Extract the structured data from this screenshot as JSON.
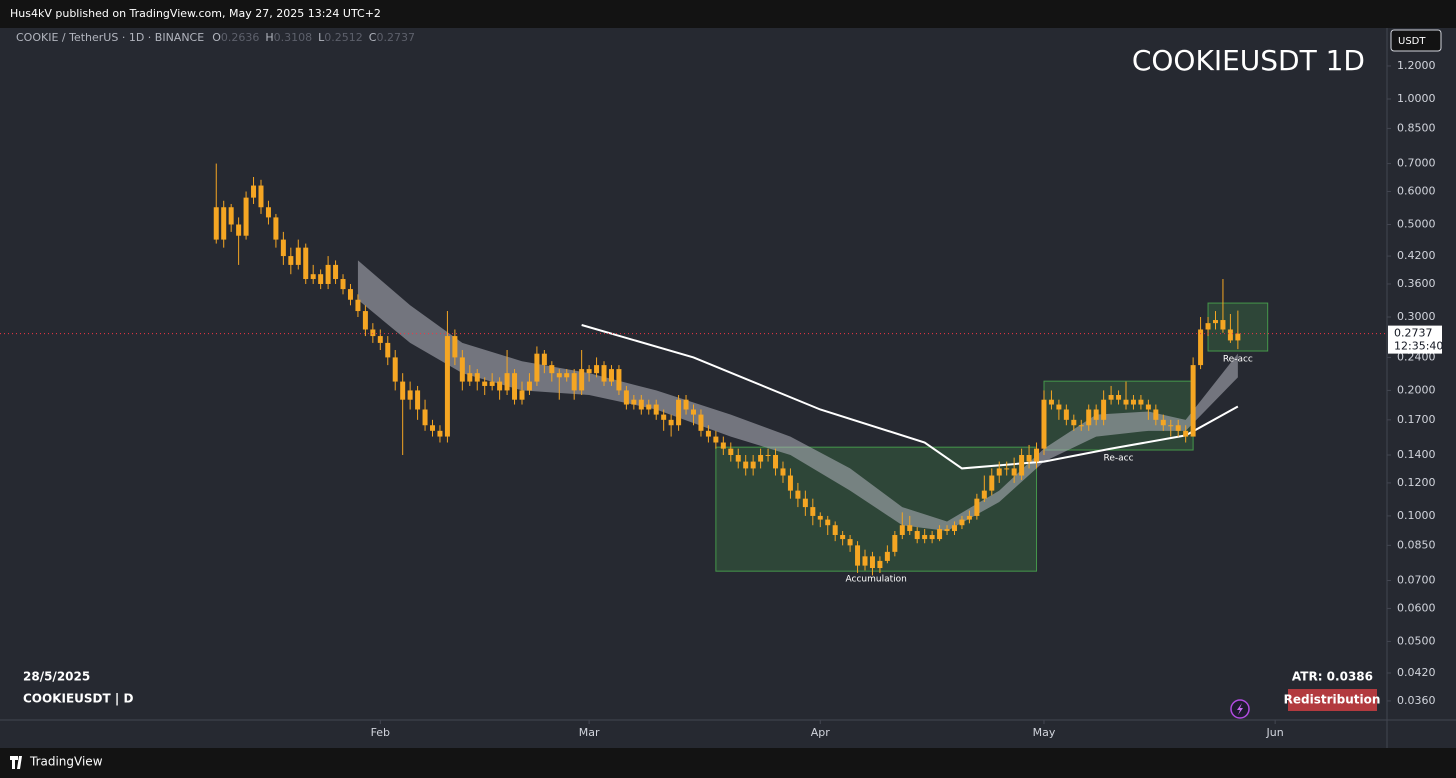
{
  "header": {
    "byline": "Hus4kV published on TradingView.com, May 27, 2025 13:24 UTC+2",
    "brand": "TradingView"
  },
  "chart_data": {
    "type": "candlestick",
    "title": "COOKIEUSDT 1D",
    "symbol": "COOKIE / TetherUS · 1D · BINANCE",
    "ohlc_labels": [
      "O",
      "H",
      "L",
      "C"
    ],
    "currency": "USDT",
    "countdown": "12:35:40",
    "color": "#f5a623",
    "zone_color": "#4caf50",
    "price_line_color": "#f23645",
    "log_scale": true,
    "xlim": [
      "2024-12-12",
      "2025-06-16"
    ],
    "ylim": [
      0.0324,
      1.48
    ],
    "yticks": [
      {
        "value": 1.2,
        "label": "1.2000"
      },
      {
        "value": 1.0,
        "label": "1.0000"
      },
      {
        "value": 0.85,
        "label": "0.8500"
      },
      {
        "value": 0.7,
        "label": "0.7000"
      },
      {
        "value": 0.6,
        "label": "0.6000"
      },
      {
        "value": 0.5,
        "label": "0.5000"
      },
      {
        "value": 0.42,
        "label": "0.4200"
      },
      {
        "value": 0.36,
        "label": "0.3600"
      },
      {
        "value": 0.3,
        "label": "0.3000"
      },
      {
        "value": 0.24,
        "label": "0.2400"
      },
      {
        "value": 0.2,
        "label": "0.2000"
      },
      {
        "value": 0.17,
        "label": "0.1700"
      },
      {
        "value": 0.14,
        "label": "0.1400"
      },
      {
        "value": 0.12,
        "label": "0.1200"
      },
      {
        "value": 0.1,
        "label": "0.1000"
      },
      {
        "value": 0.085,
        "label": "0.0850"
      },
      {
        "value": 0.07,
        "label": "0.0700"
      },
      {
        "value": 0.06,
        "label": "0.0600"
      },
      {
        "value": 0.05,
        "label": "0.0500"
      },
      {
        "value": 0.042,
        "label": "0.0420"
      },
      {
        "value": 0.036,
        "label": "0.0360"
      }
    ],
    "xticks": [
      {
        "value": "2025-02-01",
        "label": "Feb"
      },
      {
        "value": "2025-03-01",
        "label": "Mar"
      },
      {
        "value": "2025-04-01",
        "label": "Apr"
      },
      {
        "value": "2025-05-01",
        "label": "May"
      },
      {
        "value": "2025-06-01",
        "label": "Jun"
      }
    ],
    "x": [
      "2025-01-10",
      "2025-01-11",
      "2025-01-12",
      "2025-01-13",
      "2025-01-14",
      "2025-01-15",
      "2025-01-16",
      "2025-01-17",
      "2025-01-18",
      "2025-01-19",
      "2025-01-20",
      "2025-01-21",
      "2025-01-22",
      "2025-01-23",
      "2025-01-24",
      "2025-01-25",
      "2025-01-26",
      "2025-01-27",
      "2025-01-28",
      "2025-01-29",
      "2025-01-30",
      "2025-01-31",
      "2025-02-01",
      "2025-02-02",
      "2025-02-03",
      "2025-02-04",
      "2025-02-05",
      "2025-02-06",
      "2025-02-07",
      "2025-02-08",
      "2025-02-09",
      "2025-02-10",
      "2025-02-11",
      "2025-02-12",
      "2025-02-13",
      "2025-02-14",
      "2025-02-15",
      "2025-02-16",
      "2025-02-17",
      "2025-02-18",
      "2025-02-19",
      "2025-02-20",
      "2025-02-21",
      "2025-02-22",
      "2025-02-23",
      "2025-02-24",
      "2025-02-25",
      "2025-02-26",
      "2025-02-27",
      "2025-02-28",
      "2025-03-01",
      "2025-03-02",
      "2025-03-03",
      "2025-03-04",
      "2025-03-05",
      "2025-03-06",
      "2025-03-07",
      "2025-03-08",
      "2025-03-09",
      "2025-03-10",
      "2025-03-11",
      "2025-03-12",
      "2025-03-13",
      "2025-03-14",
      "2025-03-15",
      "2025-03-16",
      "2025-03-17",
      "2025-03-18",
      "2025-03-19",
      "2025-03-20",
      "2025-03-21",
      "2025-03-22",
      "2025-03-23",
      "2025-03-24",
      "2025-03-25",
      "2025-03-26",
      "2025-03-27",
      "2025-03-28",
      "2025-03-29",
      "2025-03-30",
      "2025-03-31",
      "2025-04-01",
      "2025-04-02",
      "2025-04-03",
      "2025-04-04",
      "2025-04-05",
      "2025-04-06",
      "2025-04-07",
      "2025-04-08",
      "2025-04-09",
      "2025-04-10",
      "2025-04-11",
      "2025-04-12",
      "2025-04-13",
      "2025-04-14",
      "2025-04-15",
      "2025-04-16",
      "2025-04-17",
      "2025-04-18",
      "2025-04-19",
      "2025-04-20",
      "2025-04-21",
      "2025-04-22",
      "2025-04-23",
      "2025-04-24",
      "2025-04-25",
      "2025-04-26",
      "2025-04-27",
      "2025-04-28",
      "2025-04-29",
      "2025-04-30",
      "2025-05-01",
      "2025-05-02",
      "2025-05-03",
      "2025-05-04",
      "2025-05-05",
      "2025-05-06",
      "2025-05-07",
      "2025-05-08",
      "2025-05-09",
      "2025-05-10",
      "2025-05-11",
      "2025-05-12",
      "2025-05-13",
      "2025-05-14",
      "2025-05-15",
      "2025-05-16",
      "2025-05-17",
      "2025-05-18",
      "2025-05-19",
      "2025-05-20",
      "2025-05-21",
      "2025-05-22",
      "2025-05-23",
      "2025-05-24",
      "2025-05-25",
      "2025-05-26",
      "2025-05-27"
    ],
    "ohlc": [
      [
        0.55,
        0.7,
        0.45,
        0.46
      ],
      [
        0.46,
        0.57,
        0.44,
        0.55
      ],
      [
        0.55,
        0.56,
        0.48,
        0.5
      ],
      [
        0.5,
        0.52,
        0.4,
        0.47
      ],
      [
        0.47,
        0.6,
        0.46,
        0.58
      ],
      [
        0.58,
        0.65,
        0.56,
        0.62
      ],
      [
        0.62,
        0.64,
        0.53,
        0.55
      ],
      [
        0.55,
        0.57,
        0.5,
        0.52
      ],
      [
        0.52,
        0.53,
        0.44,
        0.46
      ],
      [
        0.46,
        0.48,
        0.4,
        0.42
      ],
      [
        0.42,
        0.44,
        0.38,
        0.4
      ],
      [
        0.4,
        0.46,
        0.39,
        0.44
      ],
      [
        0.44,
        0.45,
        0.36,
        0.37
      ],
      [
        0.37,
        0.4,
        0.36,
        0.38
      ],
      [
        0.38,
        0.39,
        0.35,
        0.36
      ],
      [
        0.36,
        0.42,
        0.35,
        0.4
      ],
      [
        0.4,
        0.41,
        0.36,
        0.37
      ],
      [
        0.37,
        0.38,
        0.34,
        0.35
      ],
      [
        0.35,
        0.36,
        0.32,
        0.33
      ],
      [
        0.33,
        0.34,
        0.3,
        0.31
      ],
      [
        0.31,
        0.32,
        0.27,
        0.28
      ],
      [
        0.28,
        0.29,
        0.26,
        0.27
      ],
      [
        0.27,
        0.28,
        0.25,
        0.26
      ],
      [
        0.26,
        0.27,
        0.23,
        0.24
      ],
      [
        0.24,
        0.25,
        0.2,
        0.21
      ],
      [
        0.21,
        0.22,
        0.14,
        0.19
      ],
      [
        0.19,
        0.21,
        0.18,
        0.2
      ],
      [
        0.2,
        0.205,
        0.17,
        0.18
      ],
      [
        0.18,
        0.19,
        0.16,
        0.165
      ],
      [
        0.165,
        0.17,
        0.155,
        0.16
      ],
      [
        0.16,
        0.165,
        0.15,
        0.155
      ],
      [
        0.155,
        0.31,
        0.15,
        0.27
      ],
      [
        0.27,
        0.28,
        0.23,
        0.24
      ],
      [
        0.24,
        0.25,
        0.2,
        0.21
      ],
      [
        0.21,
        0.23,
        0.205,
        0.22
      ],
      [
        0.22,
        0.225,
        0.2,
        0.21
      ],
      [
        0.21,
        0.215,
        0.195,
        0.205
      ],
      [
        0.205,
        0.22,
        0.2,
        0.21
      ],
      [
        0.21,
        0.215,
        0.19,
        0.2
      ],
      [
        0.2,
        0.25,
        0.195,
        0.22
      ],
      [
        0.22,
        0.225,
        0.185,
        0.19
      ],
      [
        0.19,
        0.21,
        0.185,
        0.2
      ],
      [
        0.2,
        0.22,
        0.195,
        0.21
      ],
      [
        0.21,
        0.255,
        0.205,
        0.245
      ],
      [
        0.245,
        0.25,
        0.22,
        0.23
      ],
      [
        0.23,
        0.235,
        0.21,
        0.22
      ],
      [
        0.22,
        0.225,
        0.19,
        0.215
      ],
      [
        0.215,
        0.225,
        0.21,
        0.22
      ],
      [
        0.22,
        0.225,
        0.19,
        0.2
      ],
      [
        0.2,
        0.25,
        0.195,
        0.225
      ],
      [
        0.225,
        0.23,
        0.21,
        0.22
      ],
      [
        0.22,
        0.24,
        0.215,
        0.23
      ],
      [
        0.23,
        0.235,
        0.205,
        0.21
      ],
      [
        0.21,
        0.23,
        0.205,
        0.225
      ],
      [
        0.225,
        0.23,
        0.195,
        0.2
      ],
      [
        0.2,
        0.205,
        0.18,
        0.185
      ],
      [
        0.185,
        0.195,
        0.18,
        0.19
      ],
      [
        0.19,
        0.195,
        0.175,
        0.18
      ],
      [
        0.18,
        0.19,
        0.175,
        0.185
      ],
      [
        0.185,
        0.19,
        0.17,
        0.175
      ],
      [
        0.175,
        0.18,
        0.16,
        0.17
      ],
      [
        0.17,
        0.175,
        0.155,
        0.165
      ],
      [
        0.165,
        0.195,
        0.16,
        0.19
      ],
      [
        0.19,
        0.195,
        0.175,
        0.18
      ],
      [
        0.18,
        0.185,
        0.165,
        0.175
      ],
      [
        0.175,
        0.18,
        0.155,
        0.16
      ],
      [
        0.16,
        0.165,
        0.15,
        0.155
      ],
      [
        0.155,
        0.16,
        0.145,
        0.15
      ],
      [
        0.15,
        0.155,
        0.14,
        0.145
      ],
      [
        0.145,
        0.15,
        0.135,
        0.14
      ],
      [
        0.14,
        0.145,
        0.13,
        0.135
      ],
      [
        0.135,
        0.14,
        0.125,
        0.13
      ],
      [
        0.13,
        0.14,
        0.125,
        0.135
      ],
      [
        0.135,
        0.145,
        0.13,
        0.14
      ],
      [
        0.14,
        0.145,
        0.135,
        0.14
      ],
      [
        0.14,
        0.145,
        0.125,
        0.13
      ],
      [
        0.13,
        0.135,
        0.12,
        0.125
      ],
      [
        0.125,
        0.13,
        0.11,
        0.115
      ],
      [
        0.115,
        0.12,
        0.105,
        0.11
      ],
      [
        0.11,
        0.115,
        0.1,
        0.105
      ],
      [
        0.105,
        0.11,
        0.095,
        0.1
      ],
      [
        0.1,
        0.102,
        0.094,
        0.098
      ],
      [
        0.098,
        0.1,
        0.09,
        0.095
      ],
      [
        0.095,
        0.097,
        0.087,
        0.09
      ],
      [
        0.09,
        0.092,
        0.085,
        0.088
      ],
      [
        0.088,
        0.09,
        0.082,
        0.085
      ],
      [
        0.085,
        0.087,
        0.073,
        0.076
      ],
      [
        0.076,
        0.083,
        0.074,
        0.08
      ],
      [
        0.08,
        0.082,
        0.072,
        0.075
      ],
      [
        0.075,
        0.08,
        0.073,
        0.078
      ],
      [
        0.078,
        0.085,
        0.077,
        0.082
      ],
      [
        0.082,
        0.092,
        0.08,
        0.09
      ],
      [
        0.09,
        0.102,
        0.088,
        0.095
      ],
      [
        0.095,
        0.1,
        0.09,
        0.092
      ],
      [
        0.092,
        0.094,
        0.086,
        0.088
      ],
      [
        0.088,
        0.093,
        0.086,
        0.09
      ],
      [
        0.09,
        0.092,
        0.086,
        0.088
      ],
      [
        0.088,
        0.095,
        0.087,
        0.093
      ],
      [
        0.093,
        0.095,
        0.09,
        0.092
      ],
      [
        0.092,
        0.097,
        0.09,
        0.095
      ],
      [
        0.095,
        0.1,
        0.093,
        0.098
      ],
      [
        0.098,
        0.103,
        0.096,
        0.1
      ],
      [
        0.1,
        0.113,
        0.098,
        0.11
      ],
      [
        0.11,
        0.125,
        0.108,
        0.115
      ],
      [
        0.115,
        0.13,
        0.112,
        0.125
      ],
      [
        0.125,
        0.135,
        0.12,
        0.13
      ],
      [
        0.13,
        0.135,
        0.125,
        0.13
      ],
      [
        0.13,
        0.138,
        0.12,
        0.125
      ],
      [
        0.125,
        0.145,
        0.122,
        0.14
      ],
      [
        0.14,
        0.148,
        0.13,
        0.135
      ],
      [
        0.135,
        0.15,
        0.13,
        0.145
      ],
      [
        0.145,
        0.2,
        0.14,
        0.19
      ],
      [
        0.19,
        0.2,
        0.18,
        0.185
      ],
      [
        0.185,
        0.19,
        0.17,
        0.18
      ],
      [
        0.18,
        0.185,
        0.165,
        0.17
      ],
      [
        0.17,
        0.175,
        0.16,
        0.165
      ],
      [
        0.165,
        0.17,
        0.16,
        0.165
      ],
      [
        0.165,
        0.185,
        0.16,
        0.18
      ],
      [
        0.18,
        0.185,
        0.165,
        0.17
      ],
      [
        0.17,
        0.2,
        0.165,
        0.19
      ],
      [
        0.19,
        0.205,
        0.185,
        0.195
      ],
      [
        0.195,
        0.2,
        0.185,
        0.19
      ],
      [
        0.19,
        0.21,
        0.18,
        0.185
      ],
      [
        0.185,
        0.195,
        0.18,
        0.19
      ],
      [
        0.19,
        0.195,
        0.18,
        0.185
      ],
      [
        0.185,
        0.19,
        0.17,
        0.18
      ],
      [
        0.18,
        0.185,
        0.165,
        0.17
      ],
      [
        0.17,
        0.175,
        0.16,
        0.165
      ],
      [
        0.165,
        0.17,
        0.155,
        0.165
      ],
      [
        0.165,
        0.17,
        0.155,
        0.16
      ],
      [
        0.16,
        0.165,
        0.15,
        0.155
      ],
      [
        0.155,
        0.24,
        0.155,
        0.23
      ],
      [
        0.23,
        0.3,
        0.225,
        0.28
      ],
      [
        0.28,
        0.3,
        0.27,
        0.29
      ],
      [
        0.29,
        0.31,
        0.28,
        0.295
      ],
      [
        0.295,
        0.37,
        0.275,
        0.28
      ],
      [
        0.28,
        0.305,
        0.26,
        0.2636
      ],
      [
        0.2636,
        0.3108,
        0.2512,
        0.2737
      ]
    ],
    "band": {
      "color": "#b2b5be",
      "x": [
        "2025-01-29",
        "2025-02-05",
        "2025-02-12",
        "2025-02-20",
        "2025-03-01",
        "2025-03-10",
        "2025-03-20",
        "2025-03-28",
        "2025-04-05",
        "2025-04-12",
        "2025-04-18",
        "2025-04-25",
        "2025-05-01",
        "2025-05-08",
        "2025-05-15",
        "2025-05-20",
        "2025-05-27"
      ],
      "upper": [
        0.41,
        0.32,
        0.26,
        0.235,
        0.22,
        0.2,
        0.175,
        0.155,
        0.13,
        0.105,
        0.097,
        0.115,
        0.145,
        0.175,
        0.178,
        0.17,
        0.245
      ],
      "lower": [
        0.33,
        0.26,
        0.22,
        0.2,
        0.195,
        0.18,
        0.155,
        0.14,
        0.115,
        0.095,
        0.092,
        0.108,
        0.135,
        0.155,
        0.16,
        0.16,
        0.215
      ]
    },
    "ma": {
      "color": "#ffffff",
      "x": [
        "2025-02-28",
        "2025-03-15",
        "2025-04-01",
        "2025-04-15",
        "2025-04-20",
        "2025-05-01",
        "2025-05-10",
        "2025-05-20",
        "2025-05-27"
      ],
      "values": [
        0.287,
        0.24,
        0.18,
        0.15,
        0.13,
        0.135,
        0.145,
        0.156,
        0.183
      ]
    },
    "zones": [
      {
        "label": "Accumulation",
        "x": [
          "2025-03-18",
          "2025-04-30"
        ],
        "y": [
          0.0737,
          0.1462
        ]
      },
      {
        "label": "Re-acc",
        "x": [
          "2025-05-01",
          "2025-05-21"
        ],
        "y": [
          0.1439,
          0.2105
        ]
      },
      {
        "label": "Re-acc",
        "x": [
          "2025-05-23",
          "2025-05-31"
        ],
        "y": [
          0.2486,
          0.324
        ]
      }
    ],
    "panel": {
      "date": "28/5/2025",
      "symbol_tf": "COOKIEUSDT | D",
      "atr": "ATR: 0.0386",
      "button": "Redistribution"
    }
  }
}
